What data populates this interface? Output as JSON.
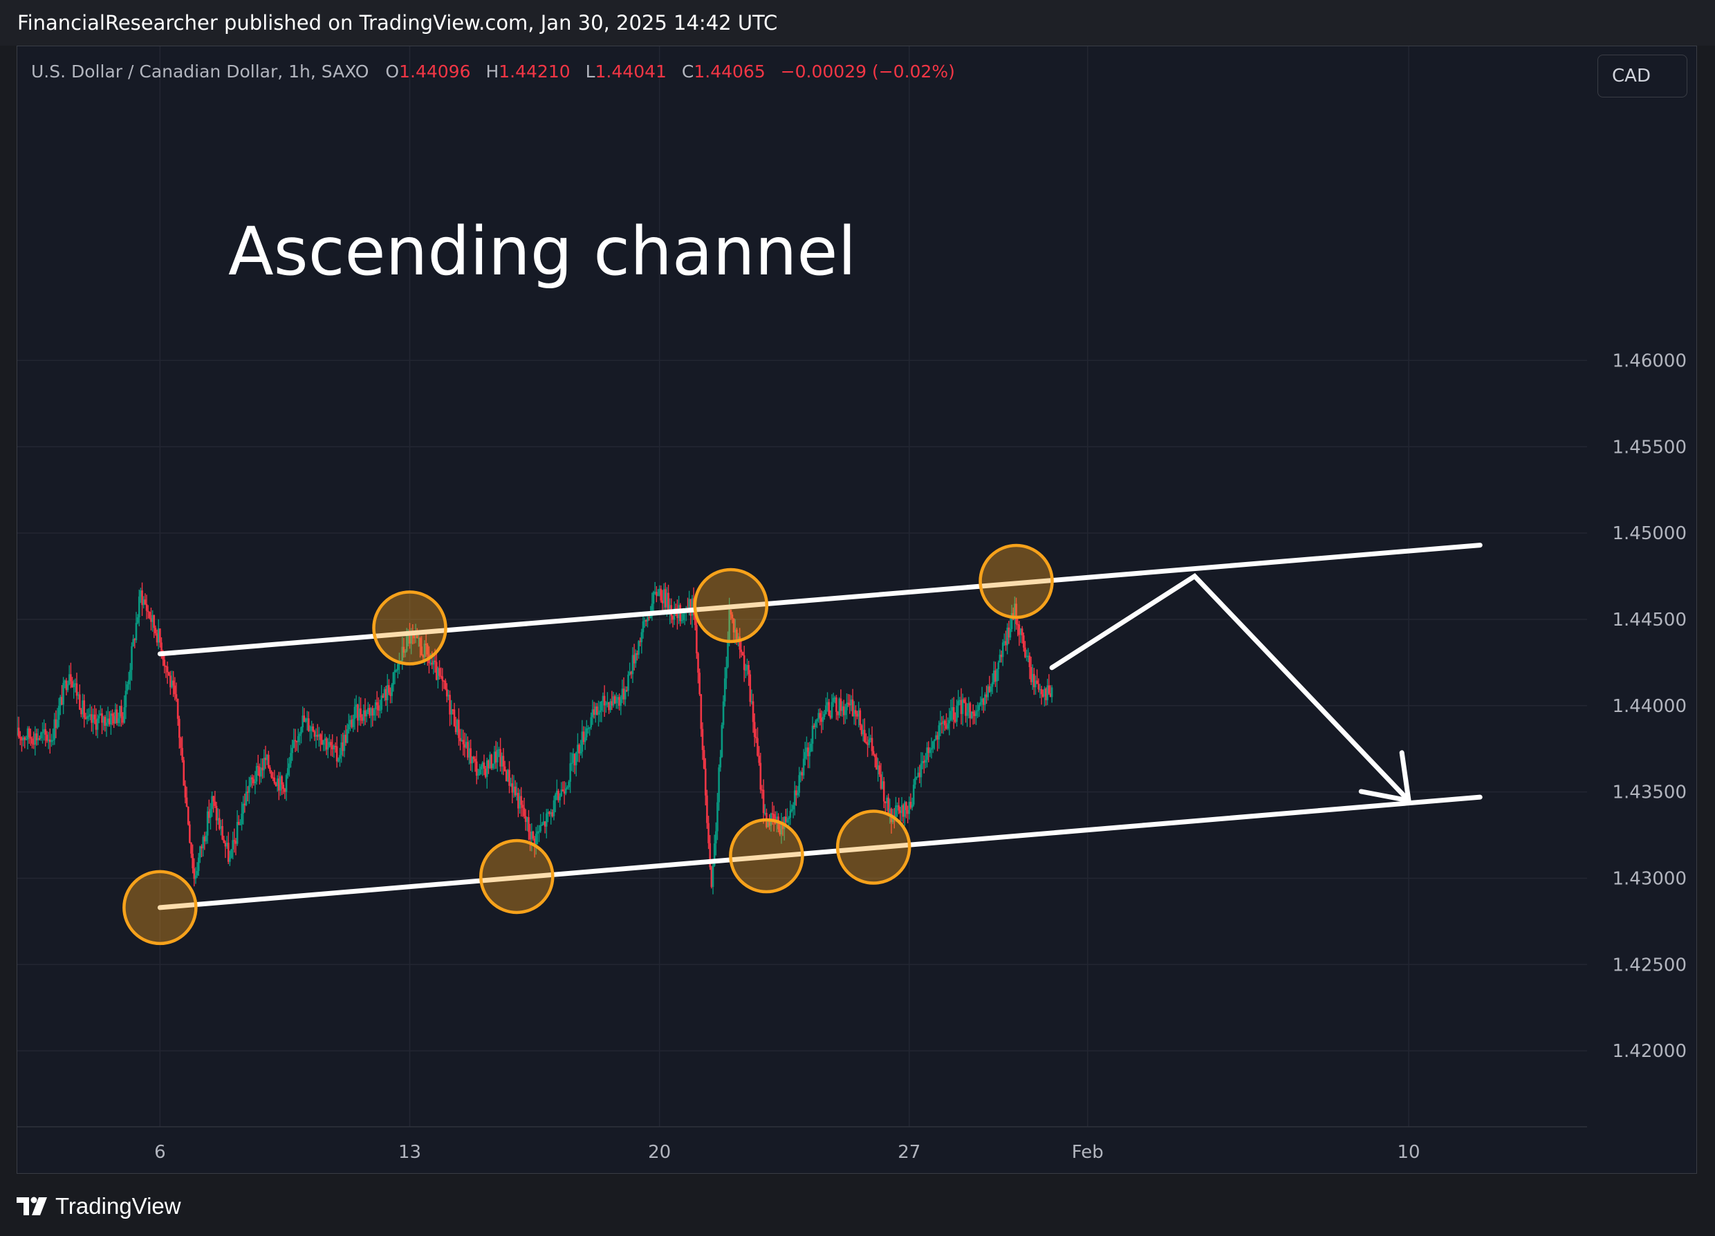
{
  "header": {
    "published_by": "FinancialResearcher published on TradingView.com, Jan 30, 2025 14:42 UTC"
  },
  "legend": {
    "symbol": "U.S. Dollar / Canadian Dollar, 1h, SAXO",
    "o_key": "O",
    "o_val": "1.44096",
    "h_key": "H",
    "h_val": "1.44210",
    "l_key": "L",
    "l_val": "1.44041",
    "c_key": "C",
    "c_val": "1.44065",
    "change": "−0.00029 (−0.02%)"
  },
  "currency_button": {
    "label": "CAD"
  },
  "footer": {
    "brand": "TradingView",
    "logo_icon": "tradingview-logo-icon"
  },
  "colors": {
    "up": "#089981",
    "down": "#f23645",
    "background": "#161a25",
    "marker": "#f7a21b",
    "annotation": "#ffffff"
  },
  "chart_data": {
    "type": "candlestick",
    "title": "",
    "annotation_text": "Ascending channel",
    "interval": "1h",
    "x_ticks": [
      "6",
      "13",
      "20",
      "27",
      "Feb",
      "10"
    ],
    "y_ticks": [
      "1.46000",
      "1.45500",
      "1.45000",
      "1.44500",
      "1.44000",
      "1.43500",
      "1.43000",
      "1.42500",
      "1.42000"
    ],
    "ylim": [
      1.4156,
      1.4782
    ],
    "grid": true,
    "series_path": [
      [
        "Jan 2",
        1.4383
      ],
      [
        "Jan 3",
        1.4382
      ],
      [
        "Jan 3 12h",
        1.4421
      ],
      [
        "Jan 4",
        1.439
      ],
      [
        "Jan 5",
        1.4395
      ],
      [
        "Jan 5 12h",
        1.4465
      ],
      [
        "Jan 6",
        1.444
      ],
      [
        "Jan 6 12h",
        1.44
      ],
      [
        "Jan 7",
        1.43
      ],
      [
        "Jan 7 12h",
        1.4345
      ],
      [
        "Jan 8",
        1.431
      ],
      [
        "Jan 8 12h",
        1.4352
      ],
      [
        "Jan 9",
        1.4368
      ],
      [
        "Jan 9 12h",
        1.4352
      ],
      [
        "Jan 10",
        1.4392
      ],
      [
        "Jan 10 12h",
        1.4385
      ],
      [
        "Jan 11",
        1.437
      ],
      [
        "Jan 11 12h",
        1.4395
      ],
      [
        "Jan 12",
        1.4398
      ],
      [
        "Jan 12 12h",
        1.441
      ],
      [
        "Jan 13",
        1.444
      ],
      [
        "Jan 13 12h",
        1.443
      ],
      [
        "Jan 14",
        1.441
      ],
      [
        "Jan 14 12h",
        1.438
      ],
      [
        "Jan 15",
        1.436
      ],
      [
        "Jan 15 12h",
        1.4372
      ],
      [
        "Jan 16",
        1.435
      ],
      [
        "Jan 16 12h",
        1.4322
      ],
      [
        "Jan 17",
        1.4338
      ],
      [
        "Jan 17 12h",
        1.436
      ],
      [
        "Jan 18",
        1.4388
      ],
      [
        "Jan 18 12h",
        1.4402
      ],
      [
        "Jan 19",
        1.4405
      ],
      [
        "Jan 19 12h",
        1.444
      ],
      [
        "Jan 20",
        1.4468
      ],
      [
        "Jan 20 12h",
        1.4452
      ],
      [
        "Jan 21",
        1.4458
      ],
      [
        "Jan 21 12h",
        1.429
      ],
      [
        "Jan 22",
        1.4455
      ],
      [
        "Jan 22 12h",
        1.442
      ],
      [
        "Jan 23",
        1.4335
      ],
      [
        "Jan 23 12h",
        1.433
      ],
      [
        "Jan 24",
        1.436
      ],
      [
        "Jan 24 12h",
        1.4395
      ],
      [
        "Jan 25",
        1.44
      ],
      [
        "Jan 25 12h",
        1.4398
      ],
      [
        "Jan 26",
        1.4375
      ],
      [
        "Jan 26 12h",
        1.4335
      ],
      [
        "Jan 27",
        1.434
      ],
      [
        "Jan 27 12h",
        1.4372
      ],
      [
        "Jan 28",
        1.4388
      ],
      [
        "Jan 28 12h",
        1.44
      ],
      [
        "Jan 29",
        1.4395
      ],
      [
        "Jan 29 12h",
        1.442
      ],
      [
        "Jan 30",
        1.4455
      ],
      [
        "Jan 30 12h",
        1.4415
      ],
      [
        "Jan 31",
        1.4406
      ]
    ],
    "channel": {
      "upper": {
        "start": [
          "Jan 6",
          1.443
        ],
        "end": [
          "Feb 12",
          1.4493
        ]
      },
      "lower": {
        "start": [
          "Jan 6",
          1.4283
        ],
        "end": [
          "Feb 12",
          1.4347
        ]
      }
    },
    "touch_points": [
      [
        "Jan 6",
        1.4283
      ],
      [
        "Jan 13",
        1.4445
      ],
      [
        "Jan 16",
        1.4301
      ],
      [
        "Jan 22",
        1.4458
      ],
      [
        "Jan 23",
        1.4313
      ],
      [
        "Jan 26",
        1.4318
      ],
      [
        "Jan 30",
        1.4472
      ]
    ],
    "projection": [
      [
        "Jan 31",
        1.4422
      ],
      [
        "Feb 4",
        1.4475
      ],
      [
        "Feb 10",
        1.4345
      ]
    ]
  }
}
